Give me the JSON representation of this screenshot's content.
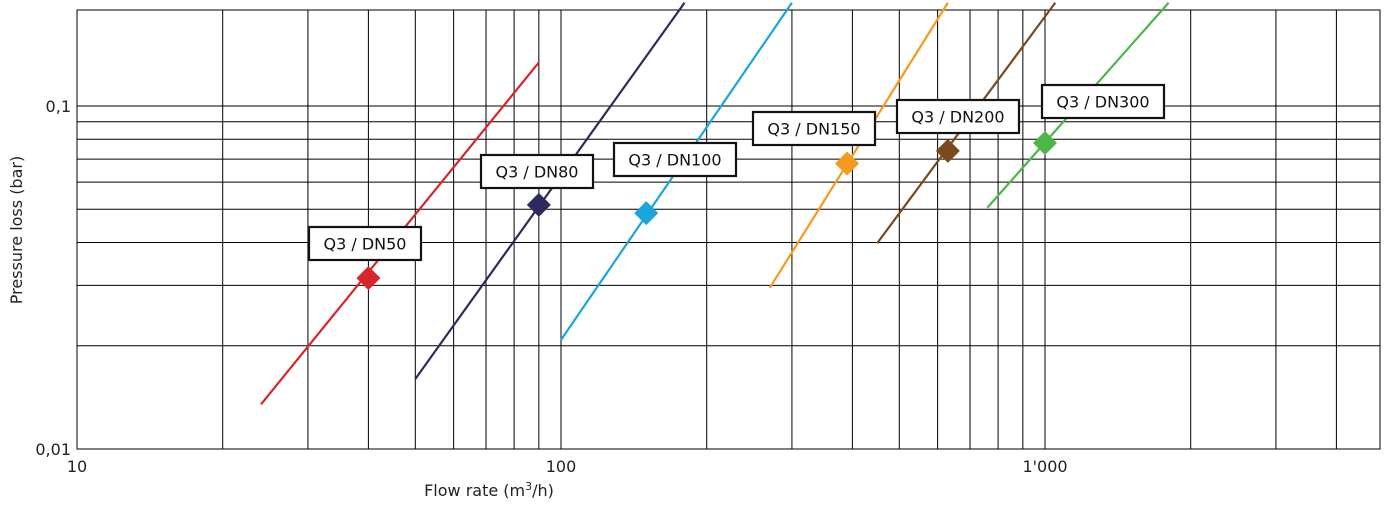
{
  "chart_data": {
    "type": "line",
    "x_scale": "log",
    "y_scale": "log",
    "xlim": [
      10,
      5000
    ],
    "ylim": [
      0.01,
      0.2
    ],
    "grid": true,
    "x_tick_labels": [
      {
        "value": 10,
        "label": "10"
      },
      {
        "value": 100,
        "label": "100"
      },
      {
        "value": 1000,
        "label": "1'000"
      }
    ],
    "y_tick_labels": [
      {
        "value": 0.01,
        "label": "0,01"
      },
      {
        "value": 0.1,
        "label": "0,1"
      }
    ],
    "xlabel_main": "Flow rate (m",
    "xlabel_sup": "3",
    "xlabel_end": "/h)",
    "ylabel": "Pressure loss (bar)",
    "series": [
      {
        "name": "Q3 / DN50",
        "color": "#d7262b",
        "x": [
          24,
          90
        ],
        "y": [
          0.0135,
          0.134
        ],
        "marker": [
          40,
          0.0315
        ]
      },
      {
        "name": "Q3 / DN80",
        "color": "#2e2a5e",
        "x": [
          50,
          180
        ],
        "y": [
          0.016,
          0.2
        ],
        "marker": [
          90,
          0.0515
        ]
      },
      {
        "name": "Q3 / DN100",
        "color": "#1aa6dd",
        "x": [
          100,
          300
        ],
        "y": [
          0.0208,
          0.2
        ],
        "marker": [
          150,
          0.0487
        ]
      },
      {
        "name": "Q3 / DN150",
        "color": "#f49a1f",
        "x": [
          270,
          630
        ],
        "y": [
          0.0295,
          0.2
        ],
        "marker": [
          390,
          0.068
        ]
      },
      {
        "name": "Q3 / DN200",
        "color": "#7a4a1e",
        "x": [
          450,
          1050
        ],
        "y": [
          0.0398,
          0.2
        ],
        "marker": [
          630,
          0.074
        ]
      },
      {
        "name": "Q3 / DN300",
        "color": "#4cb649",
        "x": [
          760,
          1800
        ],
        "y": [
          0.0505,
          0.2
        ],
        "marker": [
          1000,
          0.078
        ]
      }
    ]
  }
}
